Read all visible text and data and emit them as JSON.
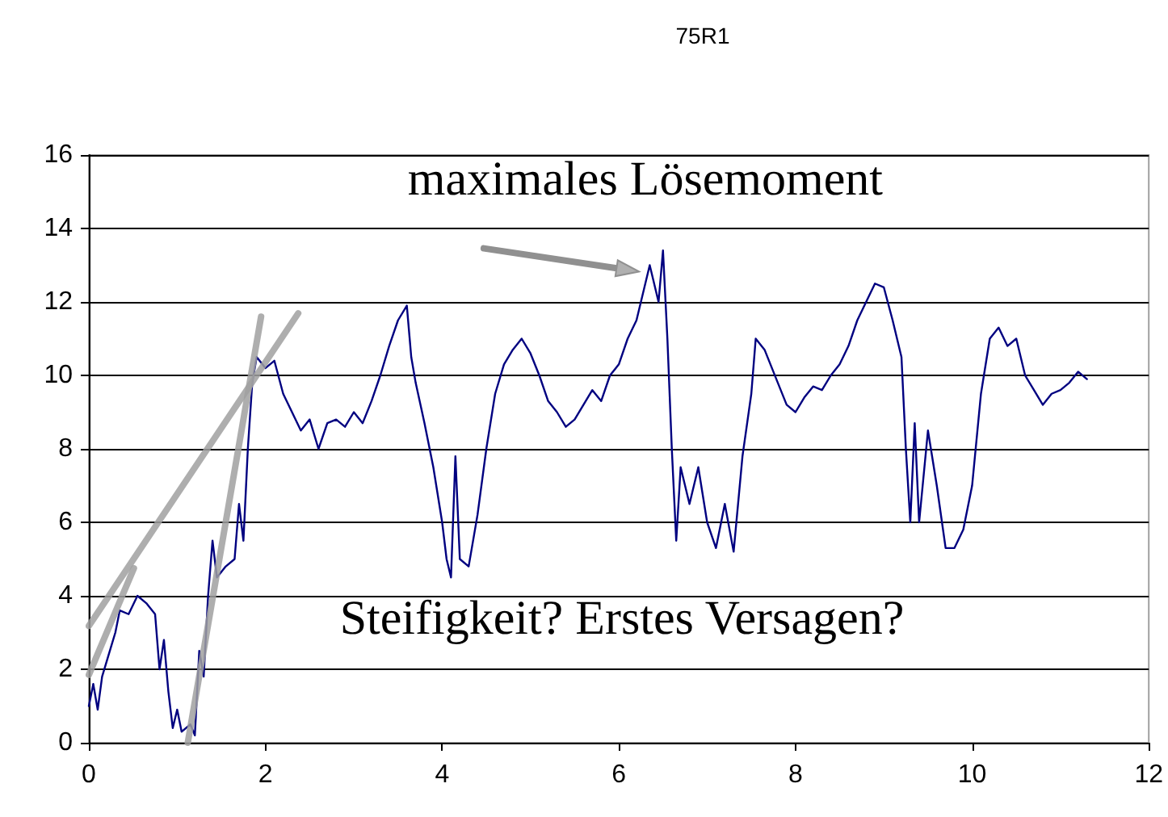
{
  "chart_data": {
    "type": "line",
    "title": "75R1",
    "xlim": [
      0,
      12
    ],
    "xticks": [
      0,
      2,
      4,
      6,
      8,
      10,
      12
    ],
    "ylim": [
      0,
      16
    ],
    "yticks": [
      0,
      2,
      4,
      6,
      8,
      10,
      12,
      14,
      16
    ],
    "grid": "y",
    "annotations": [
      {
        "text": "maximales Lösemoment",
        "x": 6.3,
        "y": 12.8
      },
      "Steifigkeit? Erstes Versagen?"
    ],
    "series": [
      {
        "color": "#000080",
        "x": [
          0,
          0.05,
          0.1,
          0.15,
          0.2,
          0.25,
          0.3,
          0.35,
          0.45,
          0.55,
          0.65,
          0.75,
          0.8,
          0.85,
          0.9,
          0.95,
          1.0,
          1.05,
          1.15,
          1.2,
          1.25,
          1.3,
          1.35,
          1.4,
          1.45,
          1.55,
          1.65,
          1.7,
          1.75,
          1.8,
          1.85,
          1.9,
          2.0,
          2.1,
          2.2,
          2.3,
          2.4,
          2.5,
          2.6,
          2.7,
          2.8,
          2.9,
          3.0,
          3.1,
          3.2,
          3.3,
          3.4,
          3.5,
          3.6,
          3.65,
          3.7,
          3.8,
          3.9,
          4.0,
          4.05,
          4.1,
          4.15,
          4.2,
          4.3,
          4.4,
          4.5,
          4.6,
          4.7,
          4.8,
          4.9,
          5.0,
          5.1,
          5.2,
          5.3,
          5.4,
          5.5,
          5.6,
          5.7,
          5.8,
          5.9,
          6.0,
          6.1,
          6.2,
          6.3,
          6.35,
          6.45,
          6.5,
          6.55,
          6.6,
          6.65,
          6.7,
          6.8,
          6.9,
          7.0,
          7.1,
          7.2,
          7.3,
          7.4,
          7.5,
          7.55,
          7.65,
          7.8,
          7.9,
          8.0,
          8.1,
          8.2,
          8.3,
          8.4,
          8.5,
          8.6,
          8.7,
          8.8,
          8.9,
          9.0,
          9.1,
          9.2,
          9.25,
          9.3,
          9.35,
          9.4,
          9.5,
          9.6,
          9.7,
          9.8,
          9.9,
          10.0,
          10.1,
          10.2,
          10.3,
          10.4,
          10.5,
          10.6,
          10.7,
          10.8,
          10.9,
          11.0,
          11.1,
          11.2,
          11.3
        ],
        "values": [
          1.0,
          1.6,
          0.9,
          1.8,
          2.2,
          2.6,
          3.0,
          3.6,
          3.5,
          4.0,
          3.8,
          3.5,
          2.0,
          2.8,
          1.4,
          0.4,
          0.9,
          0.3,
          0.5,
          0.2,
          2.5,
          1.8,
          4.0,
          5.5,
          4.5,
          4.8,
          5.0,
          6.5,
          5.5,
          8.0,
          9.8,
          10.5,
          10.2,
          10.4,
          9.5,
          9.0,
          8.5,
          8.8,
          8.0,
          8.7,
          8.8,
          8.6,
          9.0,
          8.7,
          9.3,
          10.0,
          10.8,
          11.5,
          11.9,
          10.5,
          9.8,
          8.7,
          7.5,
          6.0,
          5.0,
          4.5,
          7.8,
          5.0,
          4.8,
          6.2,
          8.0,
          9.5,
          10.3,
          10.7,
          11.0,
          10.6,
          10.0,
          9.3,
          9.0,
          8.6,
          8.8,
          9.2,
          9.6,
          9.3,
          10.0,
          10.3,
          11.0,
          11.5,
          12.5,
          13.0,
          12.0,
          13.4,
          11.0,
          8.0,
          5.5,
          7.5,
          6.5,
          7.5,
          6.0,
          5.3,
          6.5,
          5.2,
          7.8,
          9.5,
          11.0,
          10.7,
          9.8,
          9.2,
          9.0,
          9.4,
          9.7,
          9.6,
          10.0,
          10.3,
          10.8,
          11.5,
          12.0,
          12.5,
          12.4,
          11.5,
          10.5,
          8.0,
          6.0,
          8.7,
          6.0,
          8.5,
          7.0,
          5.3,
          5.3,
          5.8,
          7.0,
          9.5,
          11.0,
          11.3,
          10.8,
          11.0,
          10.0,
          9.6,
          9.2,
          9.5,
          9.6,
          9.8,
          10.1,
          9.9
        ]
      },
      {
        "color": "#a0a0a0",
        "x": [
          0,
          2.37
        ],
        "values": [
          3.18,
          11.69
        ]
      },
      {
        "color": "#a0a0a0",
        "x": [
          0,
          0.51
        ],
        "values": [
          1.85,
          4.75
        ]
      },
      {
        "color": "#a0a0a0",
        "x": [
          1.12,
          1.95
        ],
        "values": [
          0,
          11.6
        ]
      }
    ]
  }
}
